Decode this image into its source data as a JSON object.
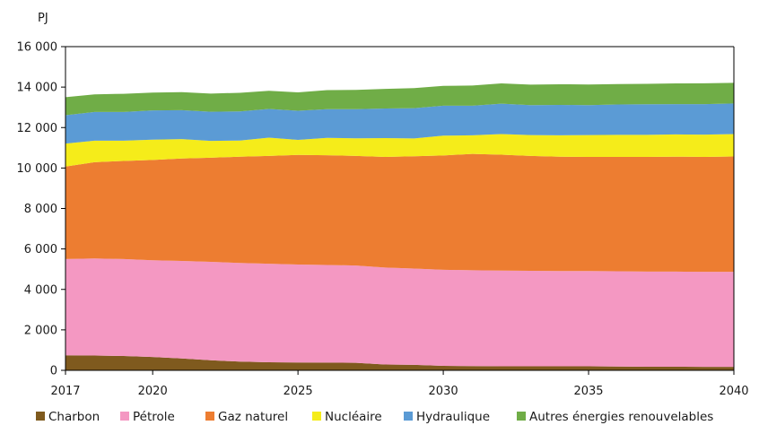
{
  "chart_data": {
    "type": "area",
    "stacked": true,
    "title": "",
    "ylabel": "PJ",
    "xlabel": "",
    "xlim": [
      2017,
      2040
    ],
    "ylim": [
      0,
      16000
    ],
    "x_ticks": [
      2017,
      2020,
      2025,
      2030,
      2035,
      2040
    ],
    "y_ticks": [
      0,
      2000,
      4000,
      6000,
      8000,
      10000,
      12000,
      14000,
      16000
    ],
    "y_tick_labels": [
      "0",
      "2 000",
      "4 000",
      "6 000",
      "8 000",
      "10 000",
      "12 000",
      "14 000",
      "16 000"
    ],
    "grid": "none",
    "legend_position": "bottom",
    "x": [
      2017,
      2018,
      2019,
      2020,
      2021,
      2022,
      2023,
      2024,
      2025,
      2026,
      2027,
      2028,
      2029,
      2030,
      2031,
      2032,
      2033,
      2034,
      2035,
      2036,
      2037,
      2038,
      2039,
      2040
    ],
    "series": [
      {
        "name": "Charbon",
        "color": "#7f5a1e",
        "values": [
          740,
          730,
          710,
          660,
          590,
          500,
          430,
          400,
          390,
          380,
          370,
          290,
          270,
          220,
          210,
          200,
          200,
          200,
          200,
          190,
          180,
          180,
          170,
          170
        ]
      },
      {
        "name": "Pétrole",
        "color": "#f498c2",
        "values": [
          4760,
          4800,
          4790,
          4780,
          4820,
          4860,
          4880,
          4870,
          4840,
          4830,
          4810,
          4790,
          4760,
          4750,
          4740,
          4730,
          4720,
          4710,
          4710,
          4710,
          4700,
          4700,
          4700,
          4700
        ]
      },
      {
        "name": "Gaz naturel",
        "color": "#ed7d31",
        "values": [
          4570,
          4760,
          4850,
          4960,
          5060,
          5150,
          5250,
          5330,
          5420,
          5420,
          5420,
          5470,
          5550,
          5650,
          5750,
          5730,
          5680,
          5650,
          5640,
          5650,
          5670,
          5680,
          5680,
          5700
        ]
      },
      {
        "name": "Nucléaire",
        "color": "#f5ec1a",
        "values": [
          1140,
          1060,
          1000,
          1000,
          960,
          830,
          800,
          900,
          740,
          860,
          870,
          930,
          880,
          980,
          920,
          1020,
          1030,
          1060,
          1080,
          1090,
          1090,
          1100,
          1100,
          1110
        ]
      },
      {
        "name": "Hydraulique",
        "color": "#5b9bd5",
        "values": [
          1400,
          1420,
          1420,
          1450,
          1430,
          1440,
          1440,
          1420,
          1440,
          1420,
          1440,
          1460,
          1500,
          1480,
          1460,
          1500,
          1480,
          1500,
          1480,
          1500,
          1510,
          1500,
          1510,
          1510
        ]
      },
      {
        "name": "Autres énergies renouvelables",
        "color": "#70ad47",
        "values": [
          890,
          870,
          900,
          880,
          890,
          900,
          920,
          900,
          910,
          940,
          950,
          970,
          990,
          980,
          1000,
          1000,
          1010,
          1020,
          1020,
          1010,
          1010,
          1020,
          1030,
          1020
        ]
      }
    ]
  }
}
